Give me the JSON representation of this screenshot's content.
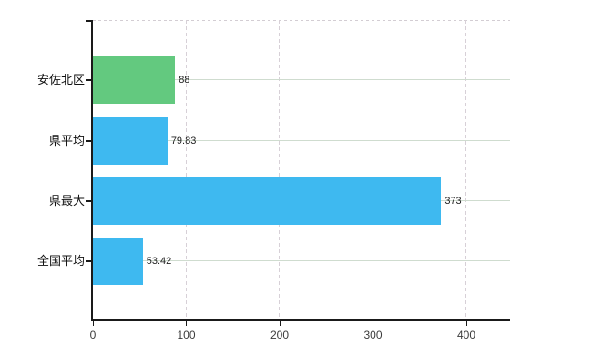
{
  "chart_data": {
    "type": "bar",
    "orientation": "horizontal",
    "title": "",
    "xlabel": "",
    "ylabel": "",
    "categories": [
      "安佐北区",
      "県平均",
      "県最大",
      "全国平均"
    ],
    "values": [
      88,
      79.83,
      373,
      53.42
    ],
    "value_labels": [
      "88",
      "79.83",
      "373",
      "53.42"
    ],
    "bar_colors": [
      "#63c97f",
      "#3eb9f0",
      "#3eb9f0",
      "#3eb9f0"
    ],
    "x_tick_labels": [
      "0",
      "100",
      "200",
      "300",
      "400"
    ],
    "x_tick_values": [
      0,
      100,
      200,
      300,
      400
    ],
    "xlim": [
      0,
      446
    ],
    "grid": true,
    "legend_position": "none"
  },
  "colors": {
    "background": "#ffffff",
    "axis": "#1a1a1a",
    "horizontal_grid": "#cfdccf",
    "vertical_grid": "#d7d0d7",
    "top_border_dash": "#d3cdd3",
    "tick_label": "#3c3c3c",
    "category_label": "#111111",
    "value_label": "#222222",
    "bar_green": "#63c97f",
    "bar_blue": "#3eb9f0"
  }
}
